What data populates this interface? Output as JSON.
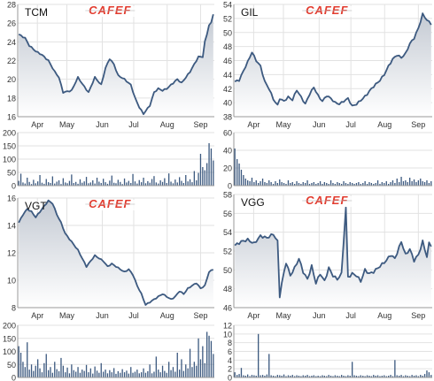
{
  "watermark": "CAFEF",
  "colors": {
    "line": "#3d5a80",
    "area_top": "#c4cad3",
    "area_bottom": "#ffffff",
    "grid": "#e2e2e2",
    "axis": "#9a9a9a",
    "tick_text": "#333333",
    "logo_red": "#e23b2e",
    "logo_gray": "#b8b8b8"
  },
  "chart_data": [
    {
      "type": "area",
      "ticker": "TCM",
      "month_labels": [
        "Apr",
        "May",
        "Jun",
        "Jul",
        "Aug",
        "Sep"
      ],
      "ylim": [
        16,
        28
      ],
      "yticks": [
        16,
        18,
        20,
        22,
        24,
        26,
        28
      ],
      "price_anchors": [
        [
          0,
          24.8
        ],
        [
          3,
          24.4
        ],
        [
          5,
          23.6
        ],
        [
          8,
          23.0
        ],
        [
          11,
          22.6
        ],
        [
          14,
          22.0
        ],
        [
          17,
          20.8
        ],
        [
          19,
          20.2
        ],
        [
          21,
          18.6
        ],
        [
          25,
          18.8
        ],
        [
          28,
          20.2
        ],
        [
          31,
          19.2
        ],
        [
          33,
          18.6
        ],
        [
          36,
          20.2
        ],
        [
          39,
          19.4
        ],
        [
          41,
          21.2
        ],
        [
          43,
          22.2
        ],
        [
          45,
          21.6
        ],
        [
          47,
          20.4
        ],
        [
          50,
          20.0
        ],
        [
          53,
          19.4
        ],
        [
          55,
          18.0
        ],
        [
          57,
          17.0
        ],
        [
          59,
          16.3
        ],
        [
          62,
          17.2
        ],
        [
          64,
          18.6
        ],
        [
          66,
          19.0
        ],
        [
          68,
          18.8
        ],
        [
          70,
          19.0
        ],
        [
          72,
          19.4
        ],
        [
          75,
          20.0
        ],
        [
          77,
          19.6
        ],
        [
          79,
          20.2
        ],
        [
          81,
          20.8
        ],
        [
          83,
          21.6
        ],
        [
          85,
          22.4
        ],
        [
          87,
          22.4
        ],
        [
          88,
          24.0
        ],
        [
          89,
          24.8
        ],
        [
          90,
          25.8
        ],
        [
          91,
          26.0
        ],
        [
          92,
          27.0
        ]
      ],
      "volume": {
        "ylim": [
          0,
          200
        ],
        "yticks": [
          0,
          50,
          100,
          150,
          200
        ],
        "values": [
          18,
          45,
          12,
          8,
          30,
          14,
          6,
          22,
          9,
          16,
          40,
          11,
          7,
          25,
          13,
          10,
          35,
          8,
          15,
          20,
          6,
          28,
          12,
          9,
          18,
          42,
          10,
          14,
          7,
          24,
          11,
          16,
          33,
          9,
          12,
          20,
          8,
          30,
          15,
          10,
          26,
          13,
          7,
          19,
          38,
          11,
          9,
          22,
          14,
          6,
          27,
          12,
          18,
          10,
          44,
          16,
          8,
          21,
          13,
          30,
          9,
          17,
          11,
          25,
          36,
          12,
          8,
          20,
          14,
          28,
          10,
          46,
          15,
          9,
          23,
          12,
          32,
          18,
          10,
          40,
          16,
          24,
          13,
          55,
          20,
          48,
          120,
          70,
          58,
          85,
          160,
          140,
          95
        ]
      }
    },
    {
      "type": "area",
      "ticker": "GIL",
      "month_labels": [
        "Apr",
        "May",
        "Jun",
        "Jul",
        "Aug",
        "Sep"
      ],
      "ylim": [
        38,
        54
      ],
      "yticks": [
        38,
        40,
        42,
        44,
        46,
        48,
        50,
        52,
        54
      ],
      "price_anchors": [
        [
          0,
          43.0
        ],
        [
          2,
          43.2
        ],
        [
          4,
          44.5
        ],
        [
          6,
          45.8
        ],
        [
          8,
          47.2
        ],
        [
          10,
          46.0
        ],
        [
          12,
          45.2
        ],
        [
          14,
          43.0
        ],
        [
          16,
          42.0
        ],
        [
          18,
          40.5
        ],
        [
          20,
          39.6
        ],
        [
          21,
          40.6
        ],
        [
          23,
          40.2
        ],
        [
          25,
          40.8
        ],
        [
          27,
          40.4
        ],
        [
          29,
          41.8
        ],
        [
          31,
          40.8
        ],
        [
          33,
          39.8
        ],
        [
          35,
          41.2
        ],
        [
          37,
          42.2
        ],
        [
          39,
          41.0
        ],
        [
          41,
          40.2
        ],
        [
          43,
          41.0
        ],
        [
          45,
          40.6
        ],
        [
          47,
          40.0
        ],
        [
          49,
          39.8
        ],
        [
          51,
          40.2
        ],
        [
          53,
          40.6
        ],
        [
          55,
          39.5
        ],
        [
          57,
          39.8
        ],
        [
          60,
          40.6
        ],
        [
          62,
          41.2
        ],
        [
          64,
          42.0
        ],
        [
          66,
          42.6
        ],
        [
          68,
          43.2
        ],
        [
          70,
          44.0
        ],
        [
          72,
          45.2
        ],
        [
          74,
          46.2
        ],
        [
          76,
          46.8
        ],
        [
          78,
          46.4
        ],
        [
          80,
          47.0
        ],
        [
          82,
          48.4
        ],
        [
          84,
          49.2
        ],
        [
          86,
          50.6
        ],
        [
          88,
          52.6
        ],
        [
          90,
          51.8
        ],
        [
          92,
          51.2
        ]
      ],
      "volume": {
        "ylim": [
          0,
          60
        ],
        "yticks": [
          0,
          20,
          40,
          60
        ],
        "values": [
          42,
          30,
          25,
          18,
          12,
          8,
          6,
          5,
          9,
          4,
          6,
          3,
          5,
          8,
          4,
          3,
          6,
          4,
          2,
          5,
          3,
          7,
          4,
          3,
          2,
          6,
          3,
          4,
          2,
          5,
          3,
          2,
          4,
          3,
          6,
          2,
          3,
          4,
          2,
          3,
          5,
          2,
          4,
          3,
          2,
          6,
          3,
          2,
          4,
          3,
          2,
          5,
          3,
          2,
          4,
          3,
          2,
          3,
          4,
          2,
          3,
          5,
          2,
          4,
          3,
          2,
          3,
          6,
          2,
          4,
          3,
          5,
          2,
          4,
          6,
          3,
          8,
          4,
          10,
          5,
          6,
          4,
          9,
          5,
          7,
          4,
          6,
          8,
          5,
          4,
          6,
          3,
          5
        ]
      }
    },
    {
      "type": "area",
      "ticker": "VGT",
      "month_labels": [
        "Apr",
        "May",
        "Jun",
        "Jul",
        "Aug",
        "Sep"
      ],
      "ylim": [
        8,
        16
      ],
      "yticks": [
        8,
        10,
        12,
        14,
        16
      ],
      "price_anchors": [
        [
          0,
          14.2
        ],
        [
          2,
          14.8
        ],
        [
          4,
          15.2
        ],
        [
          6,
          15.0
        ],
        [
          8,
          14.6
        ],
        [
          10,
          15.0
        ],
        [
          12,
          15.4
        ],
        [
          14,
          15.8
        ],
        [
          16,
          15.6
        ],
        [
          18,
          14.8
        ],
        [
          20,
          14.2
        ],
        [
          22,
          13.4
        ],
        [
          24,
          13.0
        ],
        [
          26,
          12.6
        ],
        [
          28,
          12.2
        ],
        [
          30,
          11.6
        ],
        [
          32,
          11.0
        ],
        [
          34,
          11.4
        ],
        [
          36,
          11.8
        ],
        [
          38,
          11.6
        ],
        [
          40,
          11.4
        ],
        [
          42,
          11.0
        ],
        [
          44,
          11.2
        ],
        [
          46,
          11.0
        ],
        [
          48,
          10.8
        ],
        [
          50,
          10.6
        ],
        [
          52,
          10.8
        ],
        [
          54,
          10.4
        ],
        [
          56,
          9.6
        ],
        [
          58,
          9.0
        ],
        [
          60,
          8.2
        ],
        [
          62,
          8.4
        ],
        [
          64,
          8.6
        ],
        [
          66,
          8.8
        ],
        [
          68,
          9.0
        ],
        [
          70,
          8.8
        ],
        [
          72,
          8.6
        ],
        [
          74,
          8.8
        ],
        [
          76,
          9.2
        ],
        [
          78,
          9.0
        ],
        [
          80,
          9.4
        ],
        [
          82,
          9.6
        ],
        [
          84,
          9.8
        ],
        [
          86,
          9.4
        ],
        [
          88,
          9.6
        ],
        [
          90,
          10.6
        ],
        [
          92,
          10.8
        ]
      ],
      "volume": {
        "ylim": [
          0,
          200
        ],
        "yticks": [
          0,
          50,
          100,
          150,
          200
        ],
        "values": [
          120,
          95,
          60,
          40,
          135,
          30,
          50,
          25,
          45,
          70,
          35,
          20,
          55,
          90,
          28,
          40,
          18,
          60,
          32,
          24,
          75,
          45,
          20,
          38,
          16,
          50,
          28,
          22,
          40,
          18,
          30,
          25,
          48,
          20,
          35,
          15,
          42,
          26,
          18,
          55,
          22,
          30,
          16,
          28,
          20,
          36,
          14,
          24,
          18,
          32,
          20,
          26,
          15,
          40,
          18,
          22,
          30,
          16,
          20,
          35,
          18,
          24,
          50,
          16,
          22,
          80,
          30,
          20,
          45,
          25,
          18,
          60,
          28,
          40,
          22,
          95,
          30,
          70,
          25,
          50,
          35,
          110,
          40,
          60,
          45,
          150,
          70,
          120,
          55,
          175,
          160,
          140,
          90
        ]
      }
    },
    {
      "type": "area",
      "ticker": "VGG",
      "month_labels": [
        "Apr",
        "May",
        "Jun",
        "Jul",
        "Aug",
        "Sep"
      ],
      "ylim": [
        46,
        58
      ],
      "yticks": [
        46,
        48,
        50,
        52,
        54,
        56,
        58
      ],
      "price_anchors": [
        [
          0,
          52.6
        ],
        [
          3,
          53.0
        ],
        [
          6,
          53.2
        ],
        [
          9,
          52.8
        ],
        [
          12,
          53.6
        ],
        [
          15,
          53.4
        ],
        [
          18,
          53.8
        ],
        [
          20,
          53.0
        ],
        [
          21,
          47.2
        ],
        [
          22,
          48.6
        ],
        [
          24,
          50.8
        ],
        [
          26,
          49.4
        ],
        [
          28,
          50.2
        ],
        [
          30,
          51.2
        ],
        [
          32,
          49.8
        ],
        [
          34,
          49.0
        ],
        [
          36,
          50.4
        ],
        [
          38,
          48.6
        ],
        [
          40,
          49.6
        ],
        [
          42,
          48.8
        ],
        [
          44,
          50.2
        ],
        [
          46,
          49.4
        ],
        [
          48,
          49.0
        ],
        [
          50,
          49.6
        ],
        [
          52,
          56.6
        ],
        [
          53,
          49.2
        ],
        [
          55,
          49.6
        ],
        [
          57,
          49.4
        ],
        [
          59,
          48.8
        ],
        [
          61,
          50.0
        ],
        [
          63,
          49.6
        ],
        [
          65,
          49.8
        ],
        [
          67,
          50.2
        ],
        [
          69,
          50.6
        ],
        [
          71,
          51.0
        ],
        [
          73,
          51.6
        ],
        [
          75,
          51.2
        ],
        [
          77,
          52.4
        ],
        [
          78,
          53.0
        ],
        [
          80,
          51.6
        ],
        [
          82,
          52.2
        ],
        [
          84,
          51.0
        ],
        [
          86,
          51.6
        ],
        [
          88,
          53.0
        ],
        [
          90,
          51.4
        ],
        [
          91,
          52.8
        ],
        [
          92,
          52.6
        ]
      ],
      "volume": {
        "ylim": [
          0,
          12
        ],
        "yticks": [
          0,
          2,
          4,
          6,
          8,
          10,
          12
        ],
        "values": [
          1.2,
          0.6,
          0.8,
          2.2,
          0.5,
          0.4,
          0.7,
          0.3,
          0.6,
          0.5,
          0.4,
          10.0,
          0.5,
          0.6,
          0.4,
          0.7,
          5.4,
          0.5,
          0.4,
          0.3,
          0.6,
          0.5,
          0.4,
          0.7,
          0.3,
          0.5,
          0.4,
          0.6,
          0.3,
          0.5,
          0.4,
          0.3,
          0.5,
          0.4,
          0.6,
          0.3,
          0.4,
          0.5,
          0.3,
          0.4,
          0.3,
          0.5,
          0.4,
          0.3,
          0.6,
          0.4,
          0.3,
          0.5,
          0.4,
          0.3,
          0.6,
          0.4,
          0.3,
          0.5,
          0.4,
          3.6,
          0.5,
          0.4,
          0.3,
          0.5,
          0.4,
          0.3,
          0.5,
          0.4,
          0.3,
          0.6,
          0.4,
          0.5,
          0.3,
          0.4,
          0.5,
          0.3,
          0.4,
          0.6,
          0.3,
          4.0,
          0.5,
          0.4,
          0.6,
          0.3,
          0.5,
          0.4,
          0.3,
          0.6,
          0.4,
          0.5,
          0.3,
          0.6,
          0.4,
          0.8,
          1.6,
          1.2,
          0.6
        ]
      }
    }
  ]
}
